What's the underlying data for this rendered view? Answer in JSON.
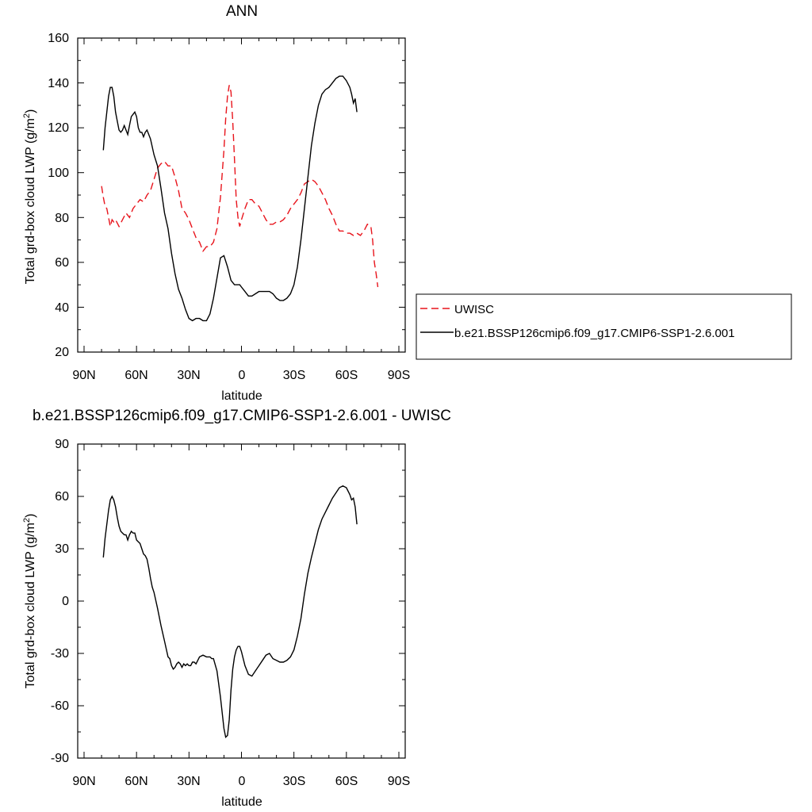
{
  "colors": {
    "uwisc": "#e8141c",
    "model": "#000000",
    "frame": "#000000",
    "background": "#ffffff"
  },
  "chart_data": [
    {
      "type": "line",
      "title": "ANN",
      "xlabel": "latitude",
      "ylabel": "Total grd-box cloud LWP (g/m",
      "ylabel_sup": "2",
      "ylabel_close": ")",
      "x_order": "descending",
      "xlim": [
        90,
        -90
      ],
      "ylim": [
        20,
        160
      ],
      "xticks": [
        90,
        60,
        30,
        0,
        -30,
        -60,
        -90
      ],
      "xtick_labels": [
        "90N",
        "60N",
        "30N",
        "0",
        "30S",
        "60S",
        "90S"
      ],
      "yticks": [
        20,
        40,
        60,
        80,
        100,
        120,
        140,
        160
      ],
      "ytick_labels": [
        "20",
        "40",
        "60",
        "80",
        "100",
        "120",
        "140",
        "160"
      ],
      "grid": false,
      "legend_placement": "outside right",
      "series": [
        {
          "name": "UWISC",
          "style": "dashed",
          "color": "#e8141c",
          "x": [
            80,
            79,
            78,
            77,
            76,
            75,
            74,
            73,
            72,
            70,
            68,
            66,
            64,
            62,
            60,
            58,
            56,
            54,
            52,
            50,
            48,
            46,
            44,
            42,
            40,
            38,
            36,
            34,
            32,
            30,
            28,
            26,
            24,
            22,
            20,
            18,
            16,
            14,
            12,
            10,
            9,
            8,
            7,
            6,
            5,
            4,
            3,
            2,
            1,
            0,
            -2,
            -4,
            -6,
            -8,
            -10,
            -12,
            -14,
            -16,
            -18,
            -20,
            -22,
            -24,
            -26,
            -28,
            -30,
            -32,
            -34,
            -36,
            -38,
            -40,
            -42,
            -44,
            -46,
            -48,
            -50,
            -52,
            -54,
            -56,
            -58,
            -60,
            -62,
            -64,
            -66,
            -68,
            -70,
            -72,
            -74,
            -75,
            -76,
            -77,
            -78
          ],
          "y": [
            94,
            89,
            85,
            84,
            80,
            76,
            79,
            78,
            79,
            76,
            79,
            82,
            80,
            84,
            86,
            88,
            87,
            90,
            92,
            97,
            102,
            104,
            105,
            103,
            103,
            98,
            92,
            84,
            82,
            79,
            75,
            71,
            69,
            65,
            67,
            67,
            69,
            75,
            89,
            110,
            124,
            134,
            139,
            136,
            123,
            106,
            88,
            80,
            76,
            79,
            84,
            88,
            88,
            86,
            85,
            82,
            79,
            77,
            77,
            78,
            78,
            79,
            81,
            84,
            86,
            88,
            91,
            95,
            96,
            97,
            96,
            94,
            91,
            88,
            84,
            81,
            77,
            74,
            74,
            73,
            73,
            72,
            73,
            72,
            74,
            77,
            76,
            70,
            60,
            55,
            49
          ]
        },
        {
          "name": "b.e21.BSSP126cmip6.f09_g17.CMIP6-SSP1-2.6.001",
          "style": "solid",
          "color": "#000000",
          "x": [
            79,
            78,
            77,
            76,
            75,
            74,
            73,
            72,
            71,
            70,
            69,
            68,
            67,
            66,
            65,
            64,
            63,
            62,
            61,
            60,
            59,
            58,
            57,
            56,
            55,
            54,
            53,
            52,
            50,
            48,
            46,
            44,
            42,
            40,
            38,
            36,
            34,
            32,
            30,
            28,
            26,
            24,
            22,
            20,
            18,
            16,
            14,
            12,
            10,
            8,
            6,
            5,
            4,
            3,
            2,
            1,
            0,
            -2,
            -4,
            -6,
            -8,
            -10,
            -12,
            -14,
            -16,
            -18,
            -20,
            -22,
            -24,
            -26,
            -28,
            -30,
            -32,
            -34,
            -36,
            -38,
            -40,
            -42,
            -44,
            -46,
            -48,
            -50,
            -52,
            -54,
            -56,
            -58,
            -60,
            -62,
            -63,
            -64,
            -65,
            -66
          ],
          "y": [
            110,
            120,
            127,
            134,
            138,
            138,
            134,
            127,
            123,
            119,
            118,
            119,
            121,
            119,
            117,
            121,
            125,
            126,
            127,
            125,
            120,
            118,
            118,
            116,
            118,
            119,
            117,
            115,
            108,
            103,
            93,
            82,
            75,
            64,
            55,
            48,
            44,
            39,
            35,
            34,
            35,
            35,
            34,
            34,
            37,
            44,
            53,
            62,
            63,
            58,
            52,
            51,
            50,
            50,
            50,
            50,
            49,
            47,
            45,
            45,
            46,
            47,
            47,
            47,
            47,
            46,
            44,
            43,
            43,
            44,
            46,
            50,
            58,
            70,
            84,
            98,
            112,
            122,
            130,
            135,
            137,
            138,
            140,
            142,
            143,
            143,
            141,
            138,
            135,
            131,
            133,
            127
          ]
        }
      ]
    },
    {
      "type": "line",
      "title": "b.e21.BSSP126cmip6.f09_g17.CMIP6-SSP1-2.6.001 - UWISC",
      "xlabel": "latitude",
      "ylabel": "Total grd-box cloud LWP (g/m",
      "ylabel_sup": "2",
      "ylabel_close": ")",
      "x_order": "descending",
      "xlim": [
        90,
        -90
      ],
      "ylim": [
        -90,
        90
      ],
      "xticks": [
        90,
        60,
        30,
        0,
        -30,
        -60,
        -90
      ],
      "xtick_labels": [
        "90N",
        "60N",
        "30N",
        "0",
        "30S",
        "60S",
        "90S"
      ],
      "yticks": [
        -90,
        -60,
        -30,
        0,
        30,
        60,
        90
      ],
      "ytick_labels": [
        "-90",
        "-60",
        "-30",
        "0",
        "30",
        "60",
        "90"
      ],
      "grid": false,
      "series": [
        {
          "style": "solid",
          "color": "#000000",
          "x": [
            79,
            78,
            77,
            76,
            75,
            74,
            73,
            72,
            71,
            70,
            69,
            68,
            67,
            66,
            65,
            64,
            63,
            62,
            61,
            60,
            59,
            58,
            57,
            56,
            55,
            54,
            53,
            52,
            51,
            50,
            48,
            46,
            44,
            42,
            41,
            40,
            39,
            38,
            37,
            36,
            35,
            34,
            33,
            32,
            31,
            30,
            29,
            28,
            27,
            26,
            25,
            24,
            22,
            20,
            18,
            17,
            16,
            14,
            12,
            10,
            9,
            8,
            7,
            6,
            5,
            4,
            3,
            2,
            1,
            0,
            -2,
            -4,
            -6,
            -8,
            -10,
            -12,
            -14,
            -16,
            -18,
            -20,
            -22,
            -24,
            -26,
            -28,
            -30,
            -32,
            -34,
            -36,
            -38,
            -40,
            -42,
            -44,
            -46,
            -48,
            -50,
            -52,
            -54,
            -56,
            -58,
            -60,
            -62,
            -63,
            -64,
            -65,
            -66
          ],
          "y": [
            25,
            36,
            44,
            52,
            58,
            60,
            58,
            54,
            48,
            43,
            40,
            39,
            38,
            38,
            35,
            38,
            40,
            39,
            39,
            35,
            34,
            33,
            30,
            27,
            26,
            24,
            19,
            13,
            8,
            5,
            -4,
            -14,
            -23,
            -32,
            -33,
            -37,
            -39,
            -38,
            -36,
            -35,
            -36,
            -38,
            -36,
            -37,
            -36,
            -37,
            -37,
            -35,
            -35,
            -36,
            -34,
            -32,
            -31,
            -32,
            -32,
            -33,
            -33,
            -40,
            -55,
            -73,
            -78,
            -77,
            -68,
            -51,
            -39,
            -32,
            -28,
            -26,
            -26,
            -29,
            -37,
            -42,
            -43,
            -40,
            -37,
            -34,
            -31,
            -30,
            -33,
            -34,
            -35,
            -35,
            -34,
            -32,
            -28,
            -20,
            -10,
            4,
            16,
            25,
            33,
            41,
            47,
            51,
            55,
            59,
            62,
            65,
            66,
            65,
            61,
            58,
            59,
            54,
            44
          ]
        }
      ]
    }
  ]
}
